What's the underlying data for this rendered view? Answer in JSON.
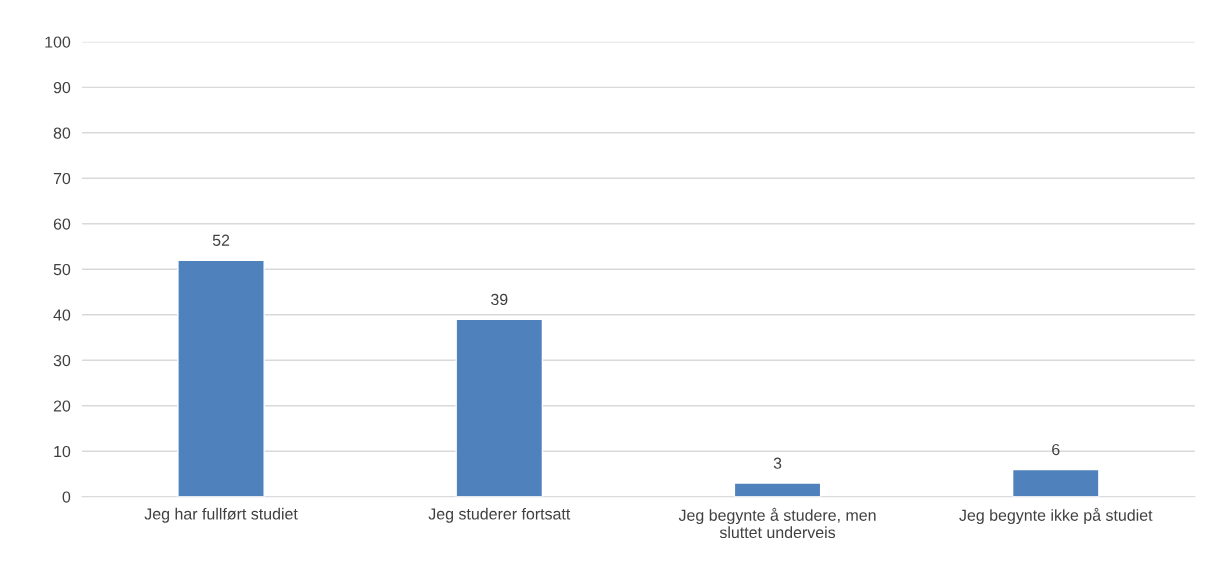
{
  "chart_data": {
    "type": "bar",
    "categories": [
      "Jeg har fullført studiet",
      "Jeg studerer fortsatt",
      "Jeg begynte å studere, men\nsluttet underveis",
      "Jeg begynte ikke på studiet"
    ],
    "values": [
      52,
      39,
      3,
      6
    ],
    "color": "#4f81bd",
    "ylim": [
      0,
      100
    ],
    "yticks": [
      0,
      10,
      20,
      30,
      40,
      50,
      60,
      70,
      80,
      90,
      100
    ],
    "grid": "y",
    "data_labels": true
  }
}
